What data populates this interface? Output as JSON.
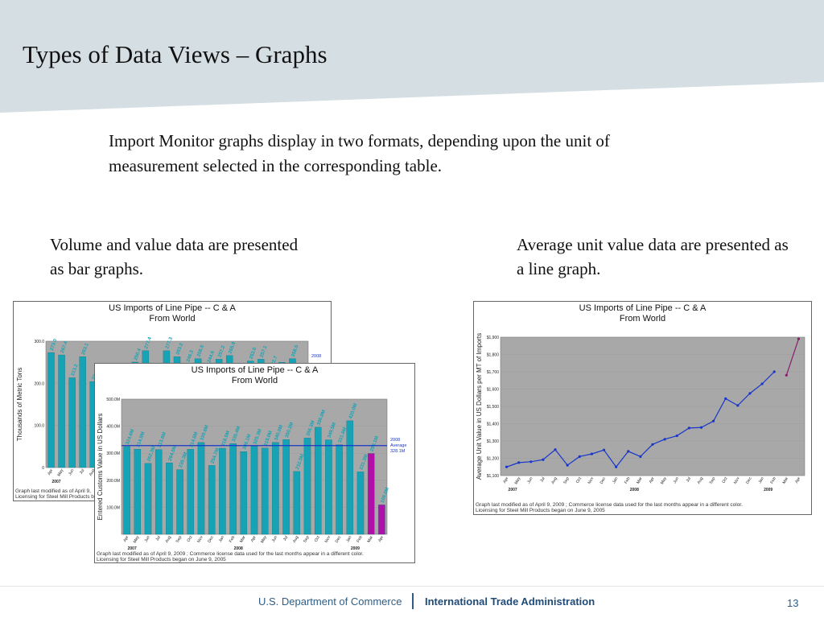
{
  "slide": {
    "title": "Types of Data Views – Graphs",
    "intro": "Import Monitor graphs display in two formats, depending upon the unit of measurement selected in the corresponding table.",
    "caption_left": "Volume and value data are presented as bar graphs.",
    "caption_right": "Average unit value data are presented as a line graph.",
    "page_number": "13"
  },
  "footer": {
    "department": "U.S. Department of Commerce",
    "agency": "International Trade Administration"
  },
  "colors": {
    "header_band": "#d5dfe3",
    "bar": "#16a3b5",
    "bar_highlight": "#b00fa8",
    "avg_line": "#1836c9",
    "line": "#1836c9",
    "line_highlight": "#8b1a6e",
    "plot_bg": "#a8a8a8"
  },
  "chart_data": [
    {
      "type": "bar",
      "title": "US Imports of Line Pipe -- C & A\nFrom World",
      "ylabel": "Thousands of Metric Tons",
      "ylim": [
        0,
        300
      ],
      "yticks": [
        "0",
        "100.0",
        "200.0",
        "300.0"
      ],
      "categories": [
        "Apr",
        "May",
        "Jun",
        "Jul",
        "Aug",
        "Sep",
        "Oct",
        "Nov",
        "Dec",
        "Jan",
        "Feb",
        "Mar",
        "Apr",
        "May",
        "Jun",
        "Jul",
        "Aug",
        "Sep",
        "Oct",
        "Nov",
        "Dec",
        "Jan",
        "Feb",
        "Mar",
        "Apr"
      ],
      "values": [
        273.0,
        267.4,
        213.2,
        263.1,
        204.1,
        230.0,
        236.0,
        241.0,
        250.4,
        277.4,
        231.0,
        277.3,
        263.2,
        246.3,
        258.5,
        244.6,
        257.2,
        265.9,
        240.0,
        253.0,
        257.1,
        232.7,
        250.0,
        258.5,
        246.0
      ],
      "value_labels": [
        "273.0",
        "267.4",
        "213.2",
        "263.1",
        "204.1",
        "",
        "",
        "",
        "250.4",
        "277.4",
        "",
        "277.3",
        "263.2",
        "246.3",
        "258.5",
        "244.6",
        "257.2",
        "265.9",
        "",
        "253.0",
        "257.1",
        "232.7",
        "",
        "258.5",
        ""
      ],
      "year_labels": [
        "2007"
      ],
      "legend": [
        "2008"
      ],
      "note_lines": [
        "Graph last modified as of April 9,",
        "Licensing for Steel Mill Products be"
      ]
    },
    {
      "type": "bar",
      "title": "US Imports of Line Pipe -- C & A\nFrom World",
      "ylabel": "Entered Customs Value in US Dollars",
      "ylim": [
        0,
        500
      ],
      "yticks": [
        "100.0M",
        "200.0M",
        "300.0M",
        "400.0M",
        "500.0M"
      ],
      "categories": [
        "Apr",
        "May",
        "Jun",
        "Jul",
        "Aug",
        "Sep",
        "Oct",
        "Nov",
        "Dec",
        "Jan",
        "Feb",
        "Mar",
        "Apr",
        "May",
        "Jun",
        "Jul",
        "Aug",
        "Sep",
        "Oct",
        "Nov",
        "Dec",
        "Jan",
        "Feb",
        "Mar",
        "Apr"
      ],
      "values": [
        324.6,
        314.9,
        262.3,
        313.6,
        264.5,
        239.3,
        314.5,
        339.6,
        254.7,
        318.5,
        335.4,
        306.1,
        325.3,
        319.0,
        340.0,
        350.2,
        232.5,
        356.3,
        396.0,
        349.5,
        331.6,
        420.0,
        231.3,
        299.1,
        109.0
      ],
      "value_labels": [
        "324.6M",
        "314.9M",
        "262.3M",
        "313.6M",
        "264.5M",
        "239.3M",
        "314.5M",
        "339.6M",
        "254.7M",
        "318.5M",
        "335.4M",
        "306.1M",
        "325.3M",
        "319.0M",
        "340.0M",
        "350.2M",
        "232.5M",
        "356.3M",
        "396.0M",
        "349.5M",
        "331.6M",
        "420.0M",
        "231.3M",
        "299.1M",
        "109.0M"
      ],
      "highlight_from_index": 23,
      "year_labels": [
        "2007",
        "2008",
        "2009"
      ],
      "legend": [
        "2008",
        "Average",
        "328.1M"
      ],
      "average": 328.1,
      "note_lines": [
        "Graph last modified as of April 9, 2009       ; Commerce license data used for the last months appear in a different color.",
        "Licensing for Steel Mill Products began on June 9, 2005"
      ]
    },
    {
      "type": "line",
      "title": "US Imports of Line Pipe -- C & A\nFrom World",
      "ylabel": "Average Unit Value in US Dollars per MT of Imports",
      "ylim": [
        1100,
        1900
      ],
      "yticks": [
        "$1,100",
        "$1,200",
        "$1,300",
        "$1,400",
        "$1,500",
        "$1,600",
        "$1,700",
        "$1,800",
        "$1,900"
      ],
      "categories": [
        "Apr",
        "May",
        "Jun",
        "Jul",
        "Aug",
        "Sep",
        "Oct",
        "Nov",
        "Dec",
        "Jan",
        "Feb",
        "Mar",
        "Apr",
        "May",
        "Jun",
        "Jul",
        "Aug",
        "Sep",
        "Oct",
        "Nov",
        "Dec",
        "Jan",
        "Feb",
        "Mar",
        "Apr"
      ],
      "values": [
        1150,
        1175,
        1180,
        1192,
        1250,
        1160,
        1210,
        1225,
        1248,
        1150,
        1240,
        1210,
        1280,
        1310,
        1330,
        1375,
        1378,
        1415,
        1545,
        1505,
        1575,
        1630,
        1700,
        1680,
        1890
      ],
      "highlight_from_index": 23,
      "year_labels": [
        "2007",
        "2008",
        "2009"
      ],
      "note_lines": [
        "Graph last modified as of April 9, 2009       ; Commerce license data used for the last months appear in a different color.",
        "Licensing for Steel Mill Products began on June 9, 2005"
      ]
    }
  ]
}
